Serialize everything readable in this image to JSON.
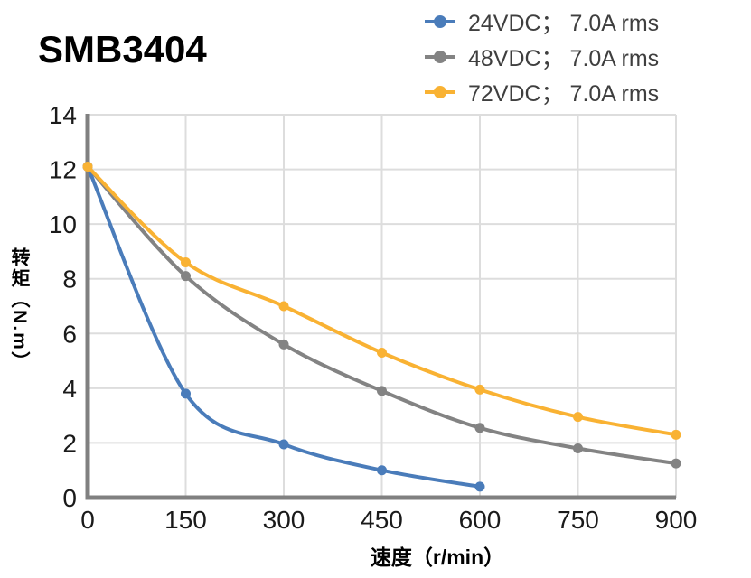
{
  "title": "SMB3404",
  "legend": {
    "position": "top-right",
    "items": [
      {
        "label": "24VDC； 7.0A rms",
        "color": "#4a7cba"
      },
      {
        "label": "48VDC； 7.0A rms",
        "color": "#838383"
      },
      {
        "label": "72VDC； 7.0A rms",
        "color": "#f9b233"
      }
    ]
  },
  "chart_data": {
    "type": "line",
    "title": "SMB3404",
    "xlabel": "速度（r/min）",
    "ylabel": "转矩（N.m）",
    "xlim": [
      0,
      900
    ],
    "ylim": [
      0,
      14
    ],
    "xticks": [
      0,
      150,
      300,
      450,
      600,
      750,
      900
    ],
    "yticks": [
      0,
      2,
      4,
      6,
      8,
      10,
      12,
      14
    ],
    "grid": true,
    "smooth": true,
    "markers": true,
    "legend_position": "top-right",
    "series": [
      {
        "name": "24VDC； 7.0A rms",
        "color": "#4a7cba",
        "x": [
          0,
          150,
          300,
          450,
          600
        ],
        "y": [
          12.1,
          3.8,
          1.95,
          1.0,
          0.4
        ]
      },
      {
        "name": "48VDC； 7.0A rms",
        "color": "#838383",
        "x": [
          0,
          150,
          300,
          450,
          600,
          750,
          900
        ],
        "y": [
          12.1,
          8.1,
          5.6,
          3.9,
          2.55,
          1.8,
          1.25
        ]
      },
      {
        "name": "72VDC； 7.0A rms",
        "color": "#f9b233",
        "x": [
          0,
          150,
          300,
          450,
          600,
          750,
          900
        ],
        "y": [
          12.1,
          8.6,
          7.0,
          5.3,
          3.95,
          2.95,
          2.3
        ]
      }
    ]
  },
  "colors": {
    "gridline": "#dddddd",
    "axis": "#808080",
    "tick_text": "#1a1a1a",
    "legend_text": "#3f3f3f",
    "background": "#ffffff"
  }
}
